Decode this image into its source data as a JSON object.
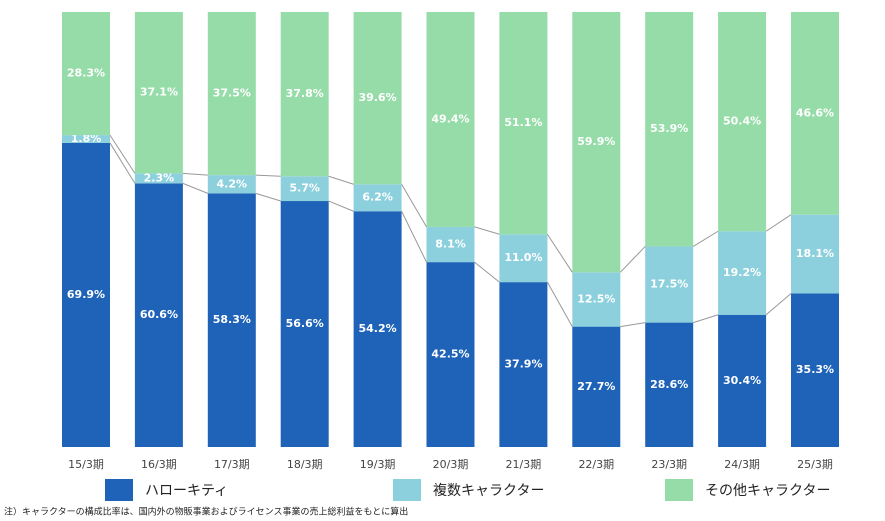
{
  "chart_data": {
    "type": "stacked_bar",
    "categories": [
      "15/3期",
      "16/3期",
      "17/3期",
      "18/3期",
      "19/3期",
      "20/3期",
      "21/3期",
      "22/3期",
      "23/3期",
      "24/3期",
      "25/3期"
    ],
    "series": [
      {
        "name": "ハローキティ",
        "color": "#1f63b8",
        "values": [
          69.9,
          60.6,
          58.3,
          56.6,
          54.2,
          42.5,
          37.9,
          27.7,
          28.6,
          30.4,
          35.3
        ],
        "value_labels": [
          "69.9%",
          "60.6%",
          "58.3%",
          "56.6%",
          "54.2%",
          "42.5%",
          "37.9%",
          "27.7%",
          "28.6%",
          "30.4%",
          "35.3%"
        ]
      },
      {
        "name": "複数キャラクター",
        "color": "#8dd0dd",
        "values": [
          1.8,
          2.3,
          4.2,
          5.7,
          6.2,
          8.1,
          11.0,
          12.5,
          17.5,
          19.2,
          18.1
        ],
        "value_labels": [
          "1.8%",
          "2.3%",
          "4.2%",
          "5.7%",
          "6.2%",
          "8.1%",
          "11.0%",
          "12.5%",
          "17.5%",
          "19.2%",
          "18.1%"
        ]
      },
      {
        "name": "その他キャラクター",
        "color": "#96dca8",
        "values": [
          28.3,
          37.1,
          37.5,
          37.8,
          39.6,
          49.4,
          51.1,
          59.9,
          53.9,
          50.4,
          46.6
        ],
        "value_labels": [
          "28.3%",
          "37.1%",
          "37.5%",
          "37.8%",
          "39.6%",
          "49.4%",
          "51.1%",
          "59.9%",
          "53.9%",
          "50.4%",
          "46.6%"
        ]
      }
    ],
    "note": "注）キャラクターの構成比率は、国内外の物販事業およびライセンス事業の売上総利益をもとに算出"
  }
}
